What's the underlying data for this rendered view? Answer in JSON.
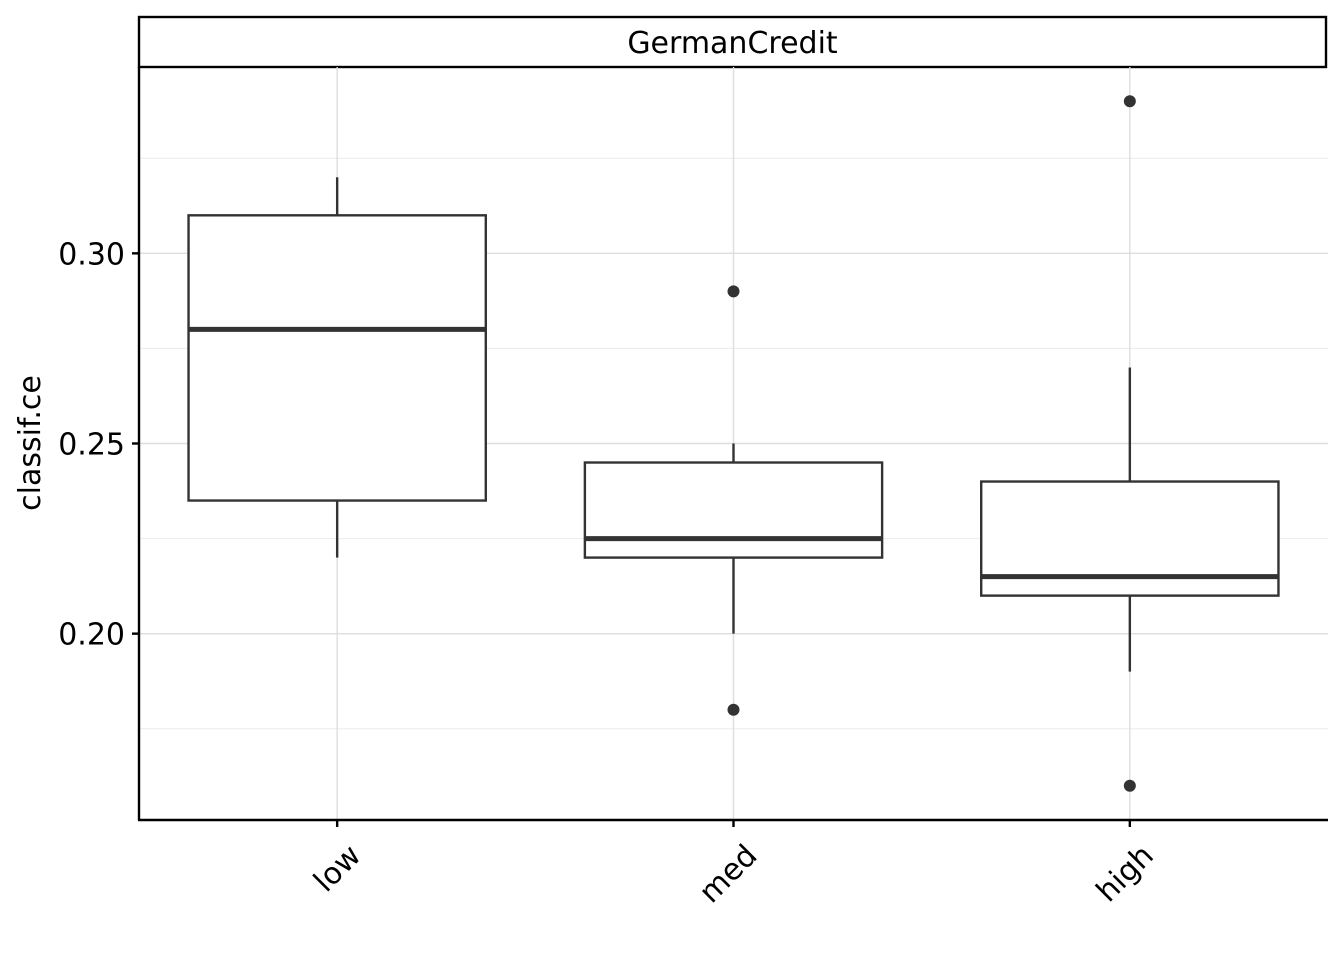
{
  "chart_data": {
    "type": "boxplot",
    "facet_label": "GermanCredit",
    "xlabel": "",
    "ylabel": "classif.ce",
    "categories": [
      "low",
      "med",
      "high"
    ],
    "y_ticks": [
      "0.20",
      "0.25",
      "0.30"
    ],
    "y_tick_values": [
      0.2,
      0.25,
      0.3
    ],
    "ylim": [
      0.151,
      0.349
    ],
    "grid": true,
    "boxes": [
      {
        "category": "low",
        "q1": 0.235,
        "median": 0.28,
        "q3": 0.31,
        "whisker_low": 0.22,
        "whisker_high": 0.32,
        "outliers": []
      },
      {
        "category": "med",
        "q1": 0.22,
        "median": 0.225,
        "q3": 0.245,
        "whisker_low": 0.2,
        "whisker_high": 0.25,
        "outliers": [
          0.29,
          0.18
        ]
      },
      {
        "category": "high",
        "q1": 0.21,
        "median": 0.215,
        "q3": 0.24,
        "whisker_low": 0.19,
        "whisker_high": 0.27,
        "outliers": [
          0.34,
          0.16
        ]
      }
    ],
    "colors": {
      "box_line": "#333333",
      "box_fill": "#ffffff",
      "grid": "#dedede"
    }
  }
}
